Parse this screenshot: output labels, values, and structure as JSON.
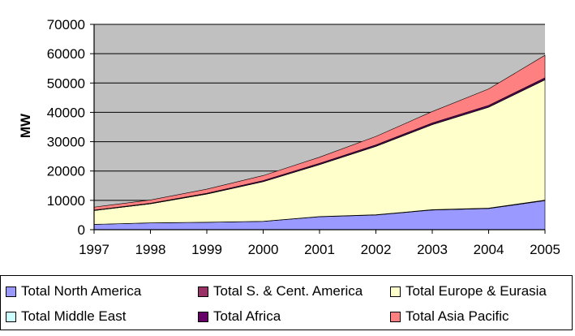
{
  "chart_data": {
    "type": "area",
    "stacked": true,
    "title": "",
    "xlabel": "",
    "ylabel": "MW",
    "ylim": [
      0,
      70000
    ],
    "yticks": [
      0,
      10000,
      20000,
      30000,
      40000,
      50000,
      60000,
      70000
    ],
    "ytick_labels": [
      "0",
      "10000",
      "20000",
      "30000",
      "40000",
      "50000",
      "60000",
      "70000"
    ],
    "x": [
      "1997",
      "1998",
      "1999",
      "2000",
      "2001",
      "2002",
      "2003",
      "2004",
      "2005"
    ],
    "grid": true,
    "plot_background": "#c0c0c0",
    "series": [
      {
        "name": "Total North America",
        "color": "#9999ff",
        "values": [
          1800,
          2300,
          2500,
          2800,
          4400,
          5000,
          6700,
          7200,
          9900
        ]
      },
      {
        "name": "Total S. & Cent. America",
        "color": "#993366",
        "values": [
          20,
          30,
          40,
          60,
          80,
          100,
          120,
          150,
          200
        ]
      },
      {
        "name": "Total Europe & Eurasia",
        "color": "#ffffcc",
        "values": [
          4700,
          6500,
          9600,
          13500,
          17700,
          23300,
          29000,
          34400,
          41000
        ]
      },
      {
        "name": "Total Middle East",
        "color": "#ccffff",
        "values": [
          10,
          10,
          20,
          30,
          30,
          40,
          50,
          60,
          70
        ]
      },
      {
        "name": "Total Africa",
        "color": "#660066",
        "values": [
          150,
          180,
          250,
          350,
          400,
          450,
          500,
          550,
          600
        ]
      },
      {
        "name": "Total Asia Pacific",
        "color": "#ff8080",
        "values": [
          1000,
          1100,
          1400,
          1700,
          2100,
          2900,
          3900,
          5600,
          7700
        ]
      }
    ],
    "legend": {
      "placement": "bottom",
      "entries": [
        "Total North America",
        "Total S. & Cent. America",
        "Total Europe & Eurasia",
        "Total Middle East",
        "Total Africa",
        "Total Asia Pacific"
      ]
    }
  }
}
